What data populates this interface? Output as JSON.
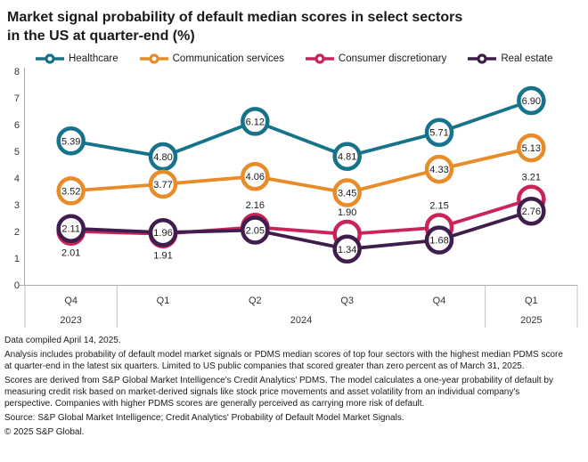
{
  "title_line1": "Market signal probability of default median scores in select sectors",
  "title_line2": "in the US at quarter-end (%)",
  "chart_data": {
    "type": "line",
    "title": "Market signal probability of default median scores in select sectors in the US at quarter-end (%)",
    "legend_position": "top",
    "grid": false,
    "ylim": [
      0,
      8
    ],
    "yticks": [
      0,
      1,
      2,
      3,
      4,
      5,
      6,
      7,
      8
    ],
    "x_quarters": [
      "Q4",
      "Q1",
      "Q2",
      "Q3",
      "Q4",
      "Q1"
    ],
    "year_groups": [
      {
        "label": "2023",
        "span": 1
      },
      {
        "label": "2024",
        "span": 4
      },
      {
        "label": "2025",
        "span": 1
      }
    ],
    "series": [
      {
        "name": "Healthcare",
        "color": "#17738a",
        "values": [
          5.39,
          4.8,
          6.12,
          4.81,
          5.71,
          6.9
        ],
        "label_style": "inside"
      },
      {
        "name": "Communication services",
        "color": "#e88c2a",
        "values": [
          3.52,
          3.77,
          4.06,
          3.45,
          4.33,
          5.13
        ],
        "label_style": "inside"
      },
      {
        "name": "Consumer discretionary",
        "color": "#c92358",
        "values": [
          2.01,
          1.91,
          2.16,
          1.9,
          2.15,
          3.21
        ],
        "label_style": "outside",
        "label_positions": [
          "below",
          "below",
          "above",
          "above",
          "above",
          "above"
        ]
      },
      {
        "name": "Real estate",
        "color": "#3f1d4c",
        "values": [
          2.11,
          1.96,
          2.05,
          1.34,
          1.68,
          2.76
        ],
        "label_style": "inside"
      }
    ]
  },
  "footnotes": [
    "Data compiled April 14, 2025.",
    "Analysis includes probability of default model market signals or PDMS median scores of top four sectors with the highest median PDMS score at quarter-end in the latest six quarters. Limited to US public companies that scored greater than zero percent as of March 31, 2025.",
    "Scores are derived from S&P Global Market Intelligence's Credit Analytics' PDMS. The model calculates a one-year probability of default by measuring credit risk based on market-derived signals like stock price movements and asset volatility from an individual company's perspective. Companies with higher PDMS scores are generally perceived as carrying more risk of default."
  ],
  "source": "Source: S&P Global Market Intelligence; Credit Analytics' Probability of Default Model Market Signals.",
  "copyright": "© 2025 S&P Global."
}
